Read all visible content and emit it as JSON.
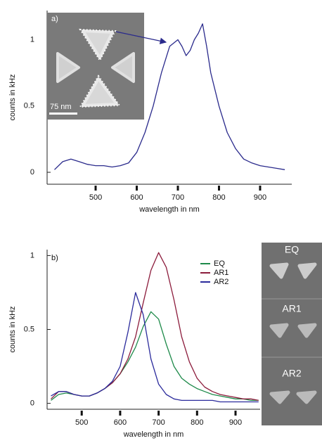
{
  "chart_data": [
    {
      "type": "line",
      "panel_label": "a)",
      "xlabel": "wavelength in nm",
      "ylabel": "counts in kHz",
      "x": [
        400,
        420,
        440,
        460,
        480,
        500,
        520,
        540,
        560,
        580,
        600,
        620,
        640,
        660,
        680,
        700,
        710,
        720,
        730,
        740,
        750,
        760,
        770,
        780,
        800,
        820,
        840,
        860,
        880,
        900,
        920,
        940,
        960
      ],
      "values": [
        0.02,
        0.08,
        0.1,
        0.08,
        0.06,
        0.05,
        0.05,
        0.04,
        0.05,
        0.07,
        0.15,
        0.3,
        0.5,
        0.75,
        0.95,
        1.0,
        0.95,
        0.88,
        0.92,
        1.0,
        1.05,
        1.12,
        0.95,
        0.75,
        0.5,
        0.3,
        0.18,
        0.1,
        0.07,
        0.05,
        0.04,
        0.03,
        0.02
      ],
      "color": "#2a2a8c",
      "xlim": [
        382,
        977
      ],
      "xticks": [
        500,
        600,
        700,
        800,
        900
      ],
      "ylim": [
        -0.09,
        1.22
      ],
      "yticks": [
        0,
        0.5,
        1
      ]
    },
    {
      "type": "line",
      "panel_label": "b)",
      "xlabel": "wavelength in nm",
      "ylabel": "counts in kHz",
      "x": [
        420,
        440,
        460,
        480,
        500,
        520,
        540,
        560,
        580,
        600,
        620,
        640,
        660,
        680,
        700,
        720,
        740,
        760,
        780,
        800,
        820,
        840,
        860,
        880,
        900,
        920,
        940,
        960
      ],
      "series": [
        {
          "name": "EQ",
          "color": "#1e8a4a",
          "values": [
            0.02,
            0.06,
            0.07,
            0.06,
            0.05,
            0.05,
            0.07,
            0.1,
            0.14,
            0.2,
            0.28,
            0.38,
            0.52,
            0.62,
            0.57,
            0.4,
            0.25,
            0.17,
            0.13,
            0.1,
            0.08,
            0.06,
            0.05,
            0.04,
            0.03,
            0.03,
            0.02,
            0.02
          ]
        },
        {
          "name": "AR1",
          "color": "#8c1c3c",
          "values": [
            0.03,
            0.08,
            0.08,
            0.06,
            0.05,
            0.05,
            0.07,
            0.1,
            0.14,
            0.2,
            0.3,
            0.45,
            0.68,
            0.9,
            1.02,
            0.92,
            0.7,
            0.45,
            0.28,
            0.17,
            0.11,
            0.08,
            0.06,
            0.05,
            0.04,
            0.03,
            0.03,
            0.02
          ]
        },
        {
          "name": "AR2",
          "color": "#2b2b9c",
          "values": [
            0.05,
            0.08,
            0.08,
            0.06,
            0.05,
            0.05,
            0.07,
            0.1,
            0.15,
            0.25,
            0.48,
            0.75,
            0.6,
            0.3,
            0.13,
            0.06,
            0.03,
            0.02,
            0.02,
            0.02,
            0.02,
            0.02,
            0.01,
            0.01,
            0.01,
            0.01,
            0.01,
            0.01
          ]
        }
      ],
      "legend": "upper right",
      "xlim": [
        410,
        964
      ],
      "xticks": [
        500,
        600,
        700,
        800,
        900
      ],
      "ylim": [
        -0.04,
        1.04
      ],
      "yticks": [
        0,
        0.5,
        1
      ]
    }
  ],
  "inset": {
    "scale_label": "75 nm"
  },
  "side_panel": {
    "labels": [
      "EQ",
      "AR1",
      "AR2"
    ]
  }
}
